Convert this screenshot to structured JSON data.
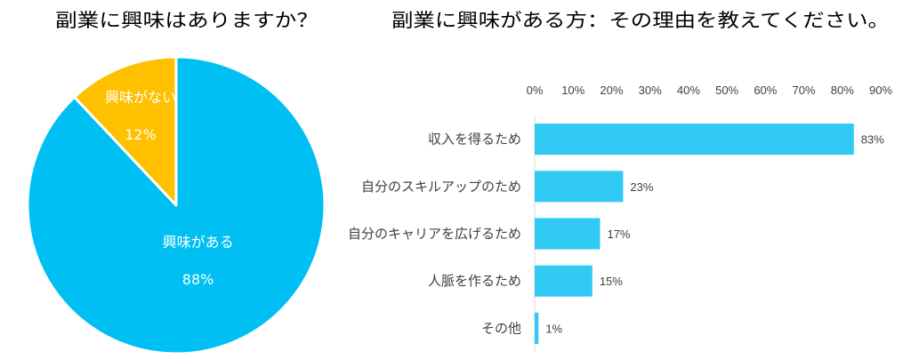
{
  "chart_data": [
    {
      "type": "pie",
      "title": "副業に興味はありますか？",
      "legend": "none",
      "slices": [
        {
          "label": "興味がある",
          "value": 88,
          "value_label": "88%",
          "color": "#00BFF3"
        },
        {
          "label": "興味がない",
          "value": 12,
          "value_label": "12%",
          "color": "#FFC000"
        }
      ]
    },
    {
      "type": "bar",
      "orientation": "horizontal",
      "title": "副業に興味がある方：その理由を教えてください。",
      "categories": [
        "収入を得るため",
        "自分のスキルアップのため",
        "自分のキャリアを広げるため",
        "人脈を作るため",
        "その他"
      ],
      "values": [
        83,
        23,
        17,
        15,
        1
      ],
      "value_labels": [
        "83%",
        "23%",
        "17%",
        "15%",
        "1%"
      ],
      "xlim": [
        0,
        90
      ],
      "xticks": [
        0,
        10,
        20,
        30,
        40,
        50,
        60,
        70,
        80,
        90
      ],
      "xtick_labels": [
        "0%",
        "10%",
        "20%",
        "30%",
        "40%",
        "50%",
        "60%",
        "70%",
        "80%",
        "90%"
      ],
      "xaxis_position": "top",
      "grid": false,
      "legend": "none",
      "color": "#31CAF4"
    }
  ]
}
